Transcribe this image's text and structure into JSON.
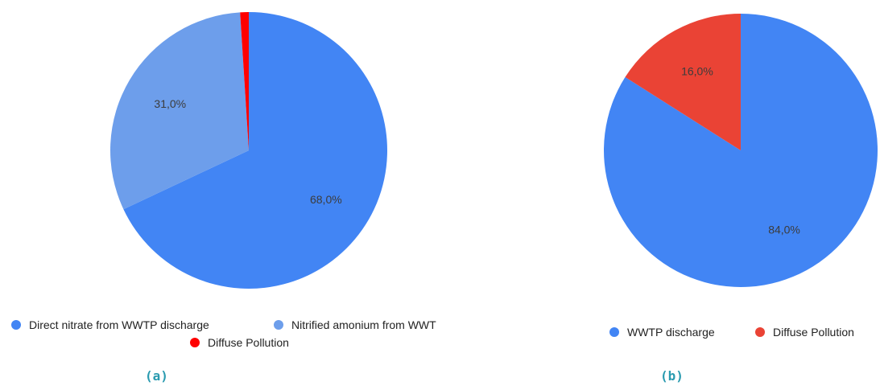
{
  "chart_data": [
    {
      "type": "pie",
      "panel_label": "(a)",
      "slices": [
        {
          "label": "Direct nitrate from WWTP discharge",
          "legend_text": "Direct nitrate from WWTP discharge",
          "value": 68.0,
          "display": "68,0%",
          "color": "#4285f4"
        },
        {
          "label": "Nitrified amonium from WWTP",
          "legend_text": "Nitrified amonium from WWT",
          "value": 31.0,
          "display": "31,0%",
          "color": "#6d9eeb"
        },
        {
          "label": "Diffuse Pollution",
          "legend_text": "Diffuse Pollution",
          "value": 1.0,
          "display": "",
          "color": "#ff0000"
        }
      ],
      "legend_placement": "bottom"
    },
    {
      "type": "pie",
      "panel_label": "(b)",
      "slices": [
        {
          "label": "WWTP discharge",
          "legend_text": "WWTP discharge",
          "value": 84.0,
          "display": "84,0%",
          "color": "#4285f4"
        },
        {
          "label": "Diffuse Pollution",
          "legend_text": "Diffuse Pollution",
          "value": 16.0,
          "display": "16,0%",
          "color": "#ea4335"
        }
      ],
      "legend_placement": "bottom"
    }
  ]
}
